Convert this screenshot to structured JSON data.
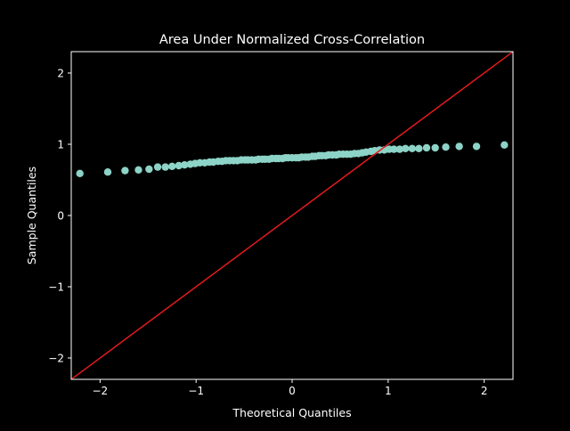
{
  "chart_data": {
    "type": "scatter",
    "title": "Area Under Normalized Cross-Correlation",
    "xlabel": "Theoretical Quantiles",
    "ylabel": "Sample Quantiles",
    "xlim": [
      -2.3,
      2.3
    ],
    "ylim": [
      -2.3,
      2.3
    ],
    "xticks": [
      {
        "value": -2,
        "label": "−2"
      },
      {
        "value": -1,
        "label": "−1"
      },
      {
        "value": 0,
        "label": "0"
      },
      {
        "value": 1,
        "label": "1"
      },
      {
        "value": 2,
        "label": "2"
      }
    ],
    "yticks": [
      {
        "value": -2,
        "label": "−2"
      },
      {
        "value": -1,
        "label": "−1"
      },
      {
        "value": 0,
        "label": "0"
      },
      {
        "value": 1,
        "label": "1"
      },
      {
        "value": 2,
        "label": "2"
      }
    ],
    "grid": false,
    "colors": {
      "background": "#000000",
      "points": "#8dd3c7",
      "reference_line": "#e41a1c",
      "axes": "#ffffff"
    },
    "reference_line": {
      "x": [
        -2.3,
        2.3
      ],
      "y": [
        -2.3,
        2.3
      ]
    },
    "points": {
      "x": [
        -2.21,
        -1.92,
        -1.74,
        -1.6,
        -1.49,
        -1.4,
        -1.32,
        -1.25,
        -1.18,
        -1.12,
        -1.06,
        -1.01,
        -0.96,
        -0.91,
        -0.86,
        -0.82,
        -0.77,
        -0.73,
        -0.69,
        -0.65,
        -0.61,
        -0.57,
        -0.53,
        -0.49,
        -0.46,
        -0.42,
        -0.38,
        -0.35,
        -0.31,
        -0.28,
        -0.24,
        -0.21,
        -0.17,
        -0.14,
        -0.1,
        -0.07,
        -0.04,
        0.0,
        0.04,
        0.07,
        0.1,
        0.14,
        0.17,
        0.21,
        0.24,
        0.28,
        0.31,
        0.35,
        0.38,
        0.42,
        0.46,
        0.49,
        0.53,
        0.57,
        0.61,
        0.65,
        0.69,
        0.73,
        0.77,
        0.82,
        0.86,
        0.91,
        0.96,
        1.01,
        1.06,
        1.12,
        1.18,
        1.25,
        1.32,
        1.4,
        1.49,
        1.6,
        1.74,
        1.92,
        2.21
      ],
      "y": [
        0.59,
        0.61,
        0.63,
        0.64,
        0.65,
        0.68,
        0.68,
        0.69,
        0.7,
        0.71,
        0.72,
        0.73,
        0.74,
        0.74,
        0.75,
        0.75,
        0.76,
        0.76,
        0.77,
        0.77,
        0.77,
        0.77,
        0.78,
        0.78,
        0.78,
        0.78,
        0.78,
        0.79,
        0.79,
        0.79,
        0.79,
        0.8,
        0.8,
        0.8,
        0.8,
        0.81,
        0.81,
        0.81,
        0.81,
        0.81,
        0.82,
        0.82,
        0.82,
        0.83,
        0.83,
        0.84,
        0.84,
        0.84,
        0.85,
        0.85,
        0.85,
        0.86,
        0.86,
        0.86,
        0.86,
        0.87,
        0.87,
        0.88,
        0.89,
        0.9,
        0.91,
        0.92,
        0.92,
        0.93,
        0.93,
        0.93,
        0.94,
        0.94,
        0.94,
        0.95,
        0.95,
        0.96,
        0.97,
        0.97,
        0.99
      ]
    }
  }
}
